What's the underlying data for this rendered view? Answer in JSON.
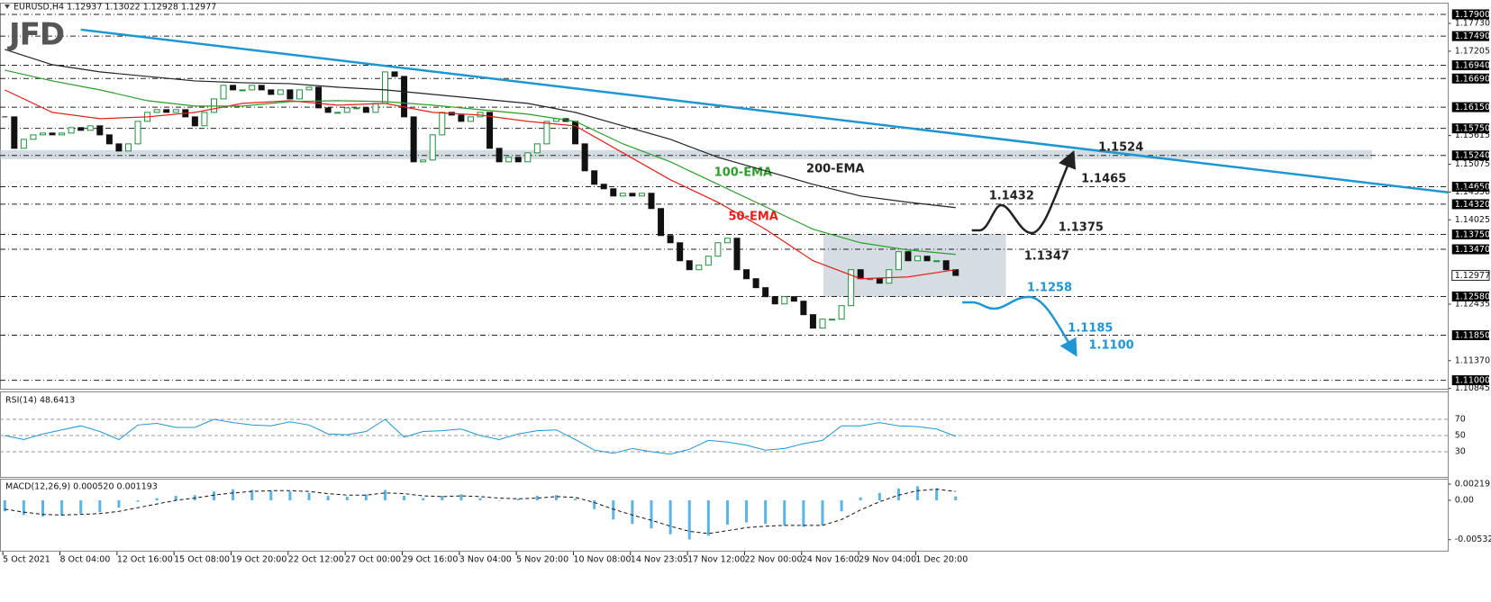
{
  "chart_data": [
    {
      "type": "candlestick",
      "title": "EURUSD,H4  1.12937 1.13022 1.12928 1.12977",
      "logo": "JFD",
      "categories": [
        "5 Oct 2021",
        null,
        null,
        null,
        null,
        null,
        "8 Oct 04:00",
        null,
        null,
        null,
        null,
        null,
        "12 Oct 16:00",
        null,
        null,
        null,
        null,
        null,
        "15 Oct 08:00",
        null,
        null,
        null,
        null,
        null,
        "19 Oct 20:00",
        null,
        null,
        null,
        null,
        null,
        "22 Oct 12:00",
        null,
        null,
        null,
        null,
        null,
        "27 Oct 00:00",
        null,
        null,
        null,
        null,
        null,
        "29 Oct 16:00",
        null,
        null,
        null,
        null,
        null,
        "3 Nov 04:00",
        null,
        null,
        null,
        null,
        null,
        "5 Nov 20:00",
        null,
        null,
        null,
        null,
        null,
        "10 Nov 08:00",
        null,
        null,
        null,
        null,
        null,
        "14 Nov 23:05",
        null,
        null,
        null,
        null,
        null,
        "17 Nov 12:00",
        null,
        null,
        null,
        null,
        null,
        "22 Nov 00:00",
        null,
        null,
        null,
        null,
        null,
        "24 Nov 16:00",
        null,
        null,
        null,
        null,
        null,
        "29 Nov 04:00",
        null,
        null,
        null,
        null,
        null,
        "1 Dec 20:00",
        null,
        null,
        null,
        null
      ],
      "close": [
        1.15967,
        1.15374,
        1.15543,
        1.15628,
        1.15662,
        1.15628,
        1.15662,
        1.15764,
        1.15713,
        1.15798,
        1.15628,
        1.15458,
        1.15323,
        1.15458,
        1.15882,
        1.16052,
        1.16103,
        1.16052,
        1.16103,
        1.15967,
        1.15798,
        1.16052,
        1.16306,
        1.16561,
        1.16476,
        1.16476,
        1.16561,
        1.16476,
        1.16391,
        1.16476,
        1.16306,
        1.16476,
        1.16527,
        1.16137,
        1.16052,
        1.16052,
        1.16137,
        1.16137,
        1.16052,
        1.16221,
        1.16815,
        1.1673,
        1.15967,
        1.15119,
        1.15153,
        1.15628,
        1.16052,
        1.16001,
        1.15882,
        1.15967,
        1.16052,
        1.15374,
        1.15119,
        1.15204,
        1.15119,
        1.15289,
        1.15458,
        1.15882,
        1.15933,
        1.15882,
        1.15458,
        1.1495,
        1.14696,
        1.14611,
        1.14475,
        1.14526,
        1.14475,
        1.14526,
        1.14238,
        1.13729,
        1.13593,
        1.13254,
        1.13085,
        1.1317,
        1.13339,
        1.13593,
        1.13678,
        1.13085,
        1.12915,
        1.12746,
        1.12576,
        1.1244,
        1.12576,
        1.12491,
        1.12237,
        1.11983,
        1.12152,
        1.12152,
        1.12407,
        1.13085,
        1.12915,
        1.12915,
        1.1283,
        1.13085,
        1.13424,
        1.13254,
        1.13339,
        1.13254,
        1.13254,
        1.13085,
        1.12977
      ],
      "color_up": "#1f8f3a",
      "color_down": "#111111",
      "ylim": [
        1.1084,
        1.1812
      ],
      "yticks": [
        {
          "value": 1.1773,
          "label": "1.17730"
        },
        1.17205,
        1.15615,
        1.15075,
        {
          "value": 1.1455,
          "label": "1.14550"
        },
        1.14025,
        1.12435,
        {
          "value": 1.1137,
          "label": "1.11370"
        },
        1.10845
      ],
      "levels": [
        {
          "value": 1.179,
          "label": "1.17900"
        },
        {
          "value": 1.1749,
          "label": "1.17490"
        },
        {
          "value": 1.1694,
          "label": "1.16940"
        },
        {
          "value": 1.1669,
          "label": "1.16690"
        },
        {
          "value": 1.1615,
          "label": "1.16150"
        },
        {
          "value": 1.1575,
          "label": "1.15750"
        },
        {
          "value": 1.1524,
          "label": "1.15240"
        },
        {
          "value": 1.1465,
          "label": "1.14650"
        },
        {
          "value": 1.1432,
          "label": "1.14320"
        },
        {
          "value": 1.1375,
          "label": "1.13750"
        },
        {
          "value": 1.1347,
          "label": "1.13470"
        },
        {
          "value": 1.1258,
          "label": "1.12580"
        },
        {
          "value": 1.1185,
          "label": "1.11850"
        },
        {
          "value": 1.11,
          "label": "1.11000"
        }
      ],
      "last_price": 1.12977,
      "overlays": [
        {
          "name": "50-EMA",
          "color": "#e32119",
          "values": [
            1.16476,
            1.16052,
            1.15933,
            1.15967,
            1.16052,
            1.16221,
            1.16272,
            1.16188,
            1.16221,
            1.16052,
            1.16001,
            1.15882,
            1.15798,
            1.15289,
            1.1478,
            1.14356,
            1.13848,
            1.13254,
            1.12915,
            1.12949,
            1.13085
          ]
        },
        {
          "name": "100-EMA",
          "color": "#2a9d2a",
          "values": [
            1.16849,
            1.16645,
            1.16476,
            1.16272,
            1.16171,
            1.16171,
            1.16255,
            1.16272,
            1.16255,
            1.16188,
            1.16103,
            1.16018,
            1.15882,
            1.15458,
            1.15119,
            1.14696,
            1.14272,
            1.13848,
            1.13593,
            1.13457,
            1.13373
          ]
        },
        {
          "name": "200-EMA",
          "color": "#222222",
          "values": [
            1.17239,
            1.16951,
            1.16815,
            1.1673,
            1.16645,
            1.16611,
            1.16594,
            1.16527,
            1.16476,
            1.16391,
            1.16306,
            1.16221,
            1.16052,
            1.15798,
            1.15543,
            1.15204,
            1.1495,
            1.14696,
            1.14475,
            1.14357,
            1.14255
          ]
        }
      ],
      "trendline": {
        "color": "#1e96d2",
        "values": [
          1.17612,
          1.14543
        ]
      },
      "zones": [
        [
          1.1517,
          1.1534
        ],
        [
          1.12576,
          1.13763
        ]
      ],
      "annotations": [
        {
          "text": "1.1524",
          "color": "#222222"
        },
        {
          "text": "1.1465",
          "color": "#222222"
        },
        {
          "text": "1.1432",
          "color": "#222222"
        },
        {
          "text": "1.1375",
          "color": "#222222"
        },
        {
          "text": "1.1347",
          "color": "#222222"
        },
        {
          "text": "1.1258",
          "color": "#1e96d2"
        },
        {
          "text": "1.1185",
          "color": "#1e96d2"
        },
        {
          "text": "1.1100",
          "color": "#1e96d2"
        }
      ]
    },
    {
      "type": "line",
      "title": "RSI(14) 48.6413",
      "color": "#1e96d2",
      "values": [
        50,
        45,
        52,
        57,
        62,
        55,
        45,
        63,
        65,
        60,
        60,
        70,
        66,
        63,
        62,
        67,
        63,
        52,
        51,
        55,
        70,
        48,
        55,
        56,
        58,
        50,
        45,
        52,
        56,
        57,
        45,
        32,
        28,
        34,
        30,
        27,
        33,
        44,
        42,
        38,
        32,
        34,
        40,
        44,
        62,
        62,
        66,
        62,
        61,
        58,
        49
      ],
      "ylim": [
        0,
        100
      ],
      "yticks": [
        70,
        50,
        30
      ]
    },
    {
      "type": "macd",
      "title": "MACD(12,26,9) 0.000520 0.001193",
      "histogram": {
        "color": "#5ab4e6",
        "values": [
          -0.0015,
          -0.002,
          -0.0022,
          -0.002,
          -0.0018,
          -0.0016,
          -0.001,
          -0.0002,
          0.0003,
          0.0006,
          0.0007,
          0.0012,
          0.0015,
          0.0014,
          0.0013,
          0.0012,
          0.001,
          0.0006,
          0.0005,
          0.0008,
          0.0014,
          0.0006,
          0.0003,
          0.0006,
          0.0008,
          0.0003,
          0,
          0.0002,
          0.0006,
          0.0007,
          0.0002,
          -0.0012,
          -0.0026,
          -0.0032,
          -0.0038,
          -0.0046,
          -0.0053,
          -0.0048,
          -0.0033,
          -0.003,
          -0.0032,
          -0.0034,
          -0.0036,
          -0.0034,
          -0.0015,
          0.0004,
          0.001,
          0.0016,
          0.0019,
          0.0016,
          0.00052
        ]
      },
      "signal": {
        "color": "#111111",
        "values": [
          -0.0012,
          -0.0016,
          -0.0019,
          -0.002,
          -0.0019,
          -0.0018,
          -0.0015,
          -0.001,
          -0.0005,
          0,
          0.0003,
          0.0007,
          0.001,
          0.0012,
          0.0013,
          0.0013,
          0.0012,
          0.0009,
          0.0007,
          0.0007,
          0.001,
          0.0009,
          0.0006,
          0.0005,
          0.0006,
          0.0005,
          0.0003,
          0.0002,
          0.0003,
          0.0005,
          0.0004,
          -0.0003,
          -0.0012,
          -0.002,
          -0.0027,
          -0.0035,
          -0.0042,
          -0.0045,
          -0.0041,
          -0.0037,
          -0.0035,
          -0.0034,
          -0.0034,
          -0.0034,
          -0.0026,
          -0.0013,
          -0.0002,
          0.0007,
          0.0013,
          0.0015,
          0.001193
        ]
      },
      "ylim": [
        -0.00682,
        0.00292
      ],
      "yticks": [
        0.002191,
        {
          "value": 0,
          "label": "0.00"
        },
        -0.005328
      ]
    }
  ]
}
